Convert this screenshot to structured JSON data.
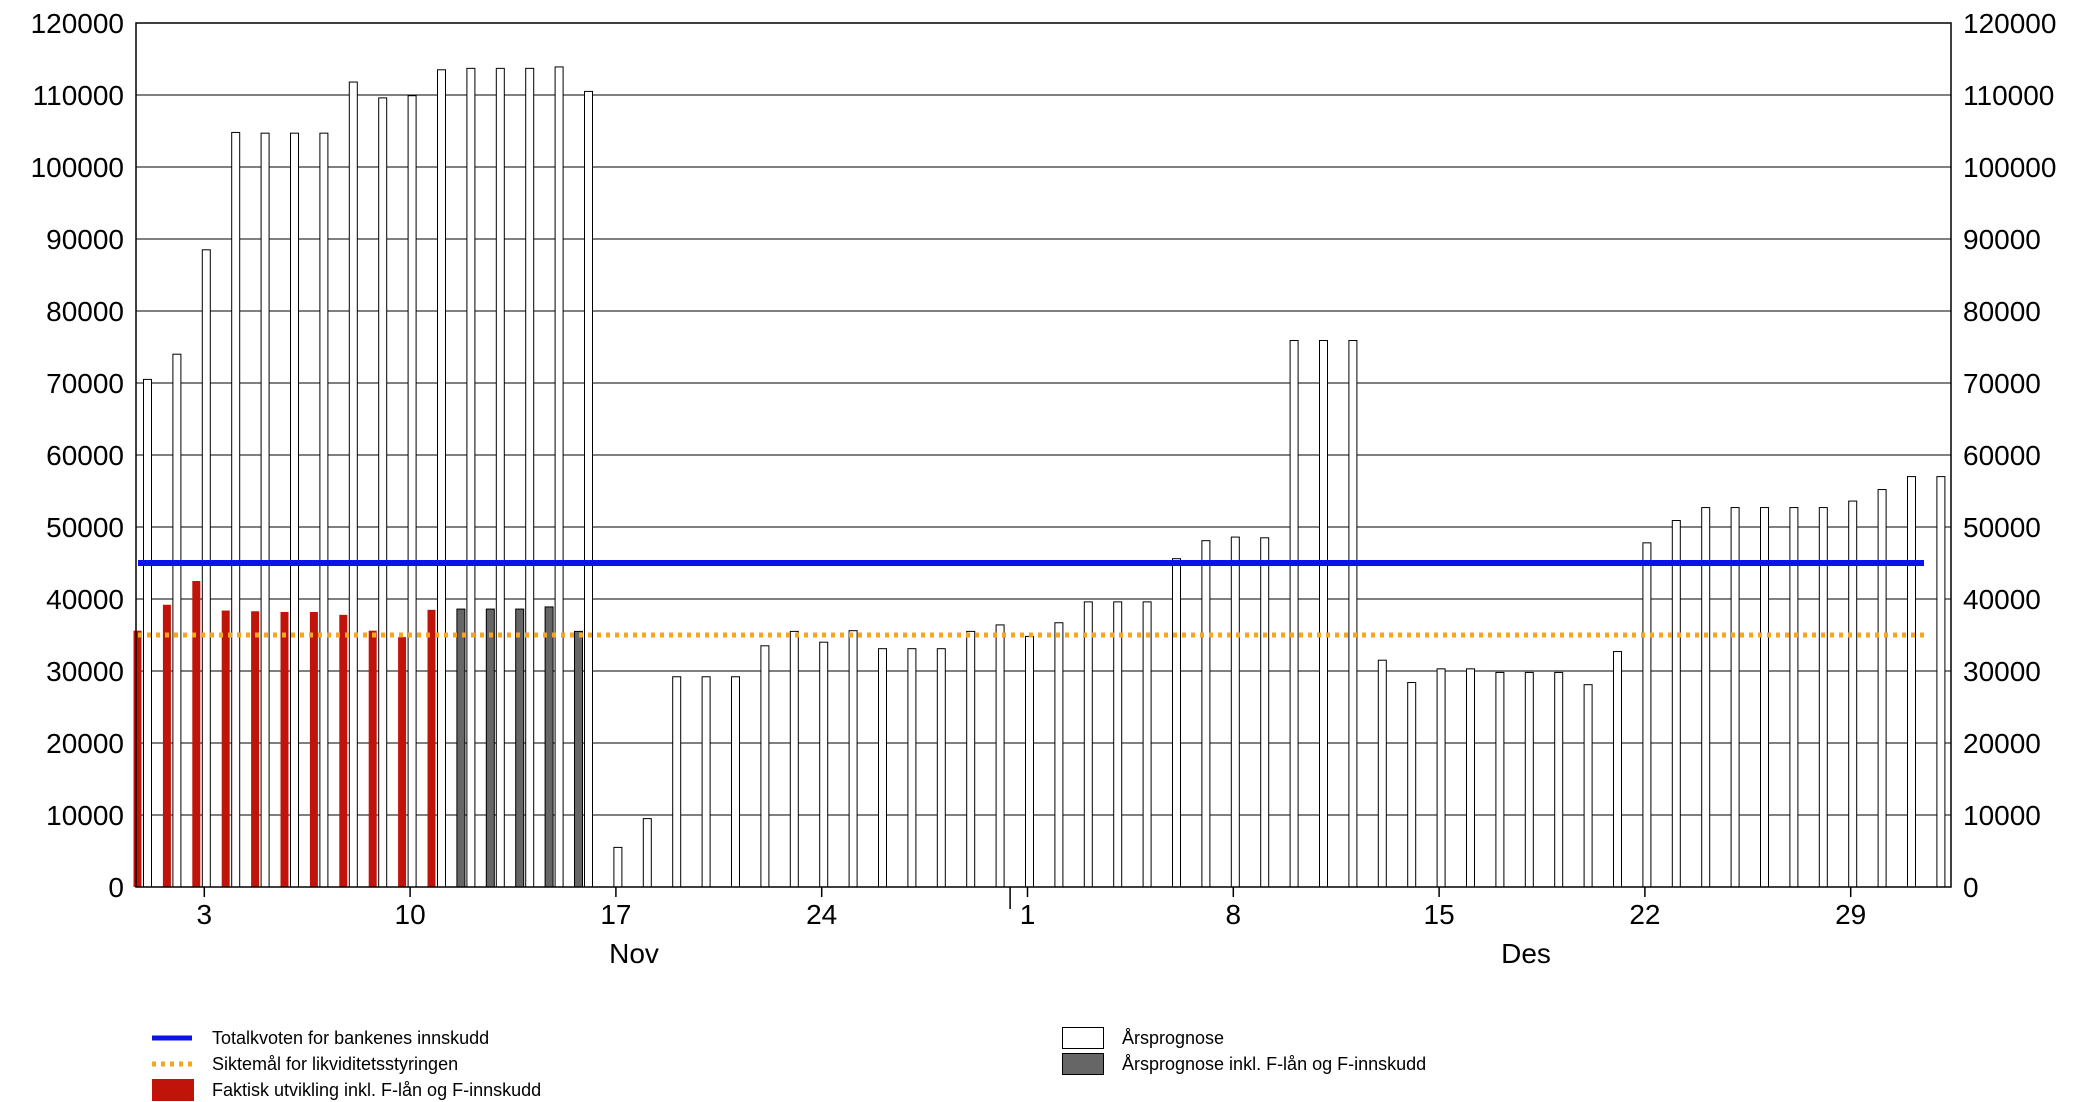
{
  "chart_data": {
    "type": "bar",
    "ylim": [
      0,
      120000
    ],
    "yticks": [
      0,
      10000,
      20000,
      30000,
      40000,
      50000,
      60000,
      70000,
      80000,
      90000,
      100000,
      110000,
      120000
    ],
    "x_day_labels": [
      "3",
      "10",
      "17",
      "24",
      "1",
      "8",
      "15",
      "22",
      "29"
    ],
    "x_month_labels": [
      "Nov",
      "Des"
    ],
    "grid": true,
    "series": [
      {
        "name": "Årsprognose",
        "color": "#ffffff",
        "values": [
          70500,
          74000,
          88500,
          104800,
          104700,
          104700,
          104700,
          111800,
          109600,
          109900,
          113500,
          113700,
          113700,
          113700,
          113900,
          110500,
          5500,
          9500,
          29200,
          29200,
          29200,
          33500,
          35500,
          34000,
          35600,
          33100,
          33100,
          33100,
          35500,
          36400,
          34800,
          36700,
          39600,
          39600,
          39600,
          45600,
          48100,
          48600,
          48500,
          75900,
          75900,
          75900,
          31500,
          28400,
          30300,
          30300,
          29800,
          29800,
          29800,
          28100,
          32700,
          47800,
          50900,
          52700,
          52700,
          52700,
          52700,
          52700,
          53600,
          55200,
          57000,
          57000
        ]
      },
      {
        "name": "Årsprognose inkl. F-lån og F-innskudd",
        "color": "#666666",
        "start_index": 11,
        "values": [
          38600,
          38600,
          38600,
          38900,
          35500
        ]
      },
      {
        "name": "Faktisk utvikling inkl. F-lån og F-innskudd",
        "color": "#c0140a",
        "values": [
          35600,
          39200,
          42500,
          38400,
          38300,
          38200,
          38200,
          37800,
          35600,
          34700,
          38500
        ]
      },
      {
        "name": "Totalkvoten for bankenes innskudd",
        "color": "#0a14e6",
        "type": "line",
        "value": 45000
      },
      {
        "name": "Siktemål for likviditetsstyringen",
        "color": "#f5a51e",
        "type": "dotted-line",
        "value": 35000
      }
    ]
  },
  "legend": {
    "total_quota": "Totalkvoten for bankenes innskudd",
    "target": "Siktemål for likviditetsstyringen",
    "actual": "Faktisk utvikling inkl. F-lån og F-innskudd",
    "forecast": "Årsprognose",
    "forecast_incl": "Årsprognose inkl. F-lån og F-innskudd"
  }
}
